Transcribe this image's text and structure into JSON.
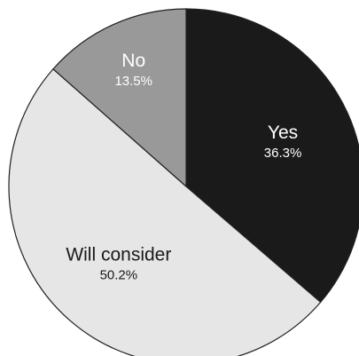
{
  "chart_data": {
    "type": "pie",
    "title": "",
    "start_angle_deg": 0,
    "direction": "clockwise",
    "slices": [
      {
        "label": "Yes",
        "value": 36.3,
        "value_label": "36.3%",
        "color": "#1a1a1a",
        "text_color": "#ffffff"
      },
      {
        "label": "Will consider",
        "value": 50.2,
        "value_label": "50.2%",
        "color": "#e6e6e6",
        "text_color": "#1a1a1a"
      },
      {
        "label": "No",
        "value": 13.5,
        "value_label": "13.5%",
        "color": "#999999",
        "text_color": "#ffffff"
      }
    ],
    "legend": "none"
  }
}
